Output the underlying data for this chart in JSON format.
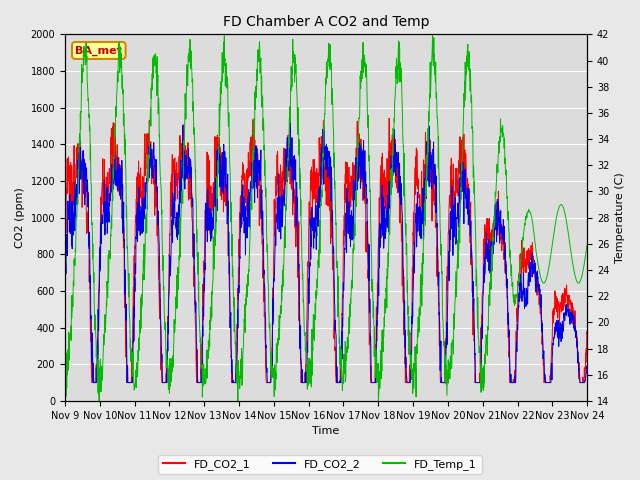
{
  "title": "FD Chamber A CO2 and Temp",
  "xlabel": "Time",
  "ylabel_left": "CO2 (ppm)",
  "ylabel_right": "Temperature (C)",
  "ylim_left": [
    0,
    2000
  ],
  "ylim_right": [
    14,
    42
  ],
  "yticks_left": [
    0,
    200,
    400,
    600,
    800,
    1000,
    1200,
    1400,
    1600,
    1800,
    2000
  ],
  "yticks_right": [
    14,
    16,
    18,
    20,
    22,
    24,
    26,
    28,
    30,
    32,
    34,
    36,
    38,
    40,
    42
  ],
  "x_tick_labels": [
    "Nov 9",
    "Nov 10",
    "Nov 11",
    "Nov 12",
    "Nov 13",
    "Nov 14",
    "Nov 15",
    "Nov 16",
    "Nov 17",
    "Nov 18",
    "Nov 19",
    "Nov 20",
    "Nov 21",
    "Nov 22",
    "Nov 23",
    "Nov 24"
  ],
  "background_color": "#e8e8e8",
  "plot_bg_color": "#dcdcdc",
  "line_colors": [
    "#ff0000",
    "#0000ee",
    "#00bb00"
  ],
  "line_labels": [
    "FD_CO2_1",
    "FD_CO2_2",
    "FD_Temp_1"
  ],
  "annotation_text": "BA_met",
  "annotation_bg": "#ffff99",
  "annotation_border": "#cc8800",
  "grid_color": "#ffffff"
}
